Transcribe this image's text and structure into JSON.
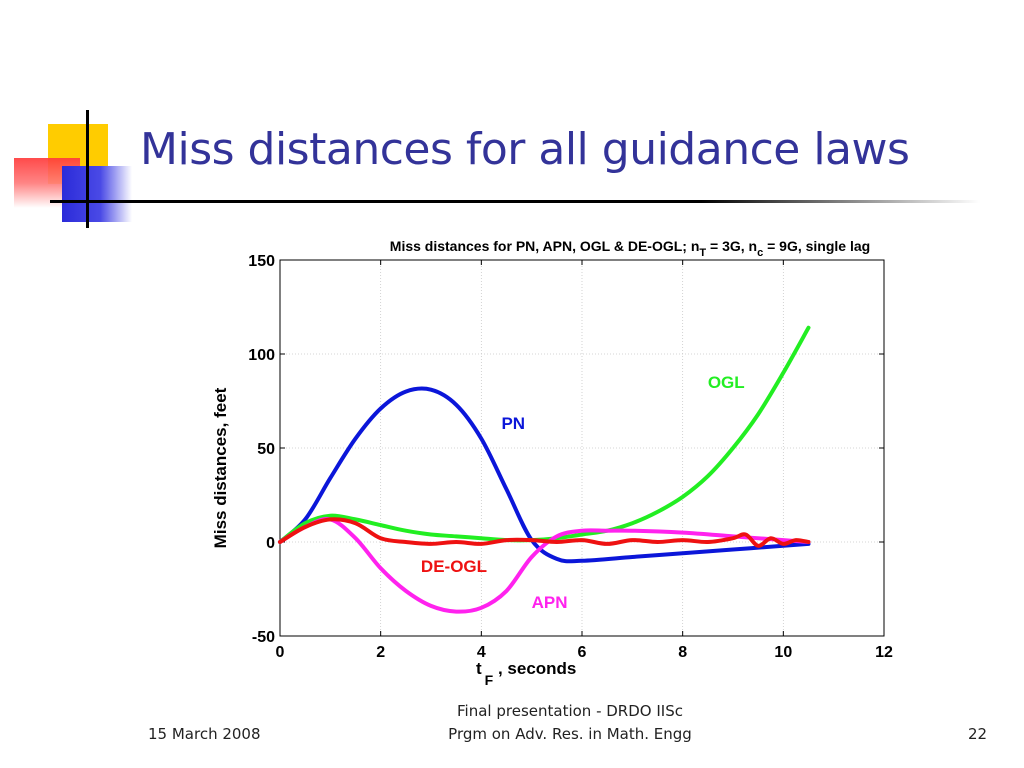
{
  "slide": {
    "title": "Miss distances for all guidance laws",
    "footer_date": "15 March 2008",
    "footer_center_line1": "Final presentation - DRDO IISc",
    "footer_center_line2": "Prgm on Adv. Res. in Math. Engg",
    "page_number": "22"
  },
  "chart_data": {
    "type": "line",
    "title_parts": {
      "main": "Miss distances for PN, APN, OGL & DE-OGL; n",
      "sub1": "T",
      "mid": " = 3G, n",
      "sub2": "c",
      "end": " = 9G, single lag"
    },
    "ylabel": "Miss distances, feet",
    "xlabel_main": "t",
    "xlabel_sub": "F",
    "xlabel_end": " ,  seconds",
    "xlim": [
      0,
      12
    ],
    "ylim": [
      -50,
      150
    ],
    "xticks": [
      0,
      2,
      4,
      6,
      8,
      10,
      12
    ],
    "yticks": [
      -50,
      0,
      50,
      100,
      150
    ],
    "grid": true,
    "series": [
      {
        "name": "PN",
        "color": "#0b16d9",
        "x": [
          0,
          0.5,
          1,
          1.5,
          2,
          2.5,
          3,
          3.5,
          4,
          4.5,
          5,
          5.5,
          6,
          7,
          8,
          9,
          10,
          10.5
        ],
        "values": [
          0,
          12,
          34,
          55,
          71,
          80,
          81,
          73,
          55,
          28,
          1,
          -9,
          -10,
          -8,
          -6,
          -4,
          -2,
          -1
        ]
      },
      {
        "name": "OGL",
        "color": "#22ee22",
        "x": [
          0,
          0.5,
          1,
          1.5,
          2,
          2.5,
          3,
          3.5,
          4,
          4.5,
          5,
          5.5,
          6,
          6.5,
          7,
          7.5,
          8,
          8.5,
          9,
          9.5,
          10,
          10.5
        ],
        "values": [
          0,
          10,
          14,
          12,
          9,
          6,
          4,
          3,
          2,
          1,
          1,
          2,
          4,
          6,
          10,
          16,
          24,
          35,
          50,
          68,
          90,
          114
        ]
      },
      {
        "name": "APN",
        "color": "#ff22ee",
        "x": [
          0,
          0.5,
          1,
          1.5,
          2,
          2.5,
          3,
          3.5,
          4,
          4.5,
          5,
          5.5,
          6,
          6.5,
          7,
          8,
          9,
          10,
          10.5
        ],
        "values": [
          0,
          8,
          12,
          2,
          -14,
          -26,
          -34,
          -37,
          -35,
          -26,
          -8,
          3,
          6,
          6,
          6,
          5,
          3,
          1,
          0
        ]
      },
      {
        "name": "DE-OGL",
        "color": "#ee1111",
        "x": [
          0,
          0.5,
          1,
          1.5,
          2,
          2.5,
          3,
          3.5,
          4,
          4.5,
          5,
          5.5,
          6,
          6.5,
          7,
          7.5,
          8,
          8.5,
          9,
          9.25,
          9.5,
          9.75,
          10,
          10.25,
          10.5
        ],
        "values": [
          0,
          8,
          12,
          10,
          2,
          0,
          -1,
          0,
          -1,
          1,
          1,
          0,
          1,
          -1,
          1,
          0,
          1,
          0,
          2,
          4,
          -2,
          2,
          -1,
          1,
          0
        ]
      }
    ],
    "annotations": [
      {
        "text": "PN",
        "x": 4.4,
        "y": 60,
        "color": "#0b16d9"
      },
      {
        "text": "OGL",
        "x": 8.5,
        "y": 82,
        "color": "#22ee22"
      },
      {
        "text": "DE-OGL",
        "x": 2.8,
        "y": -16,
        "color": "#ee1111"
      },
      {
        "text": "APN",
        "x": 5.0,
        "y": -35,
        "color": "#ff22ee"
      }
    ]
  }
}
